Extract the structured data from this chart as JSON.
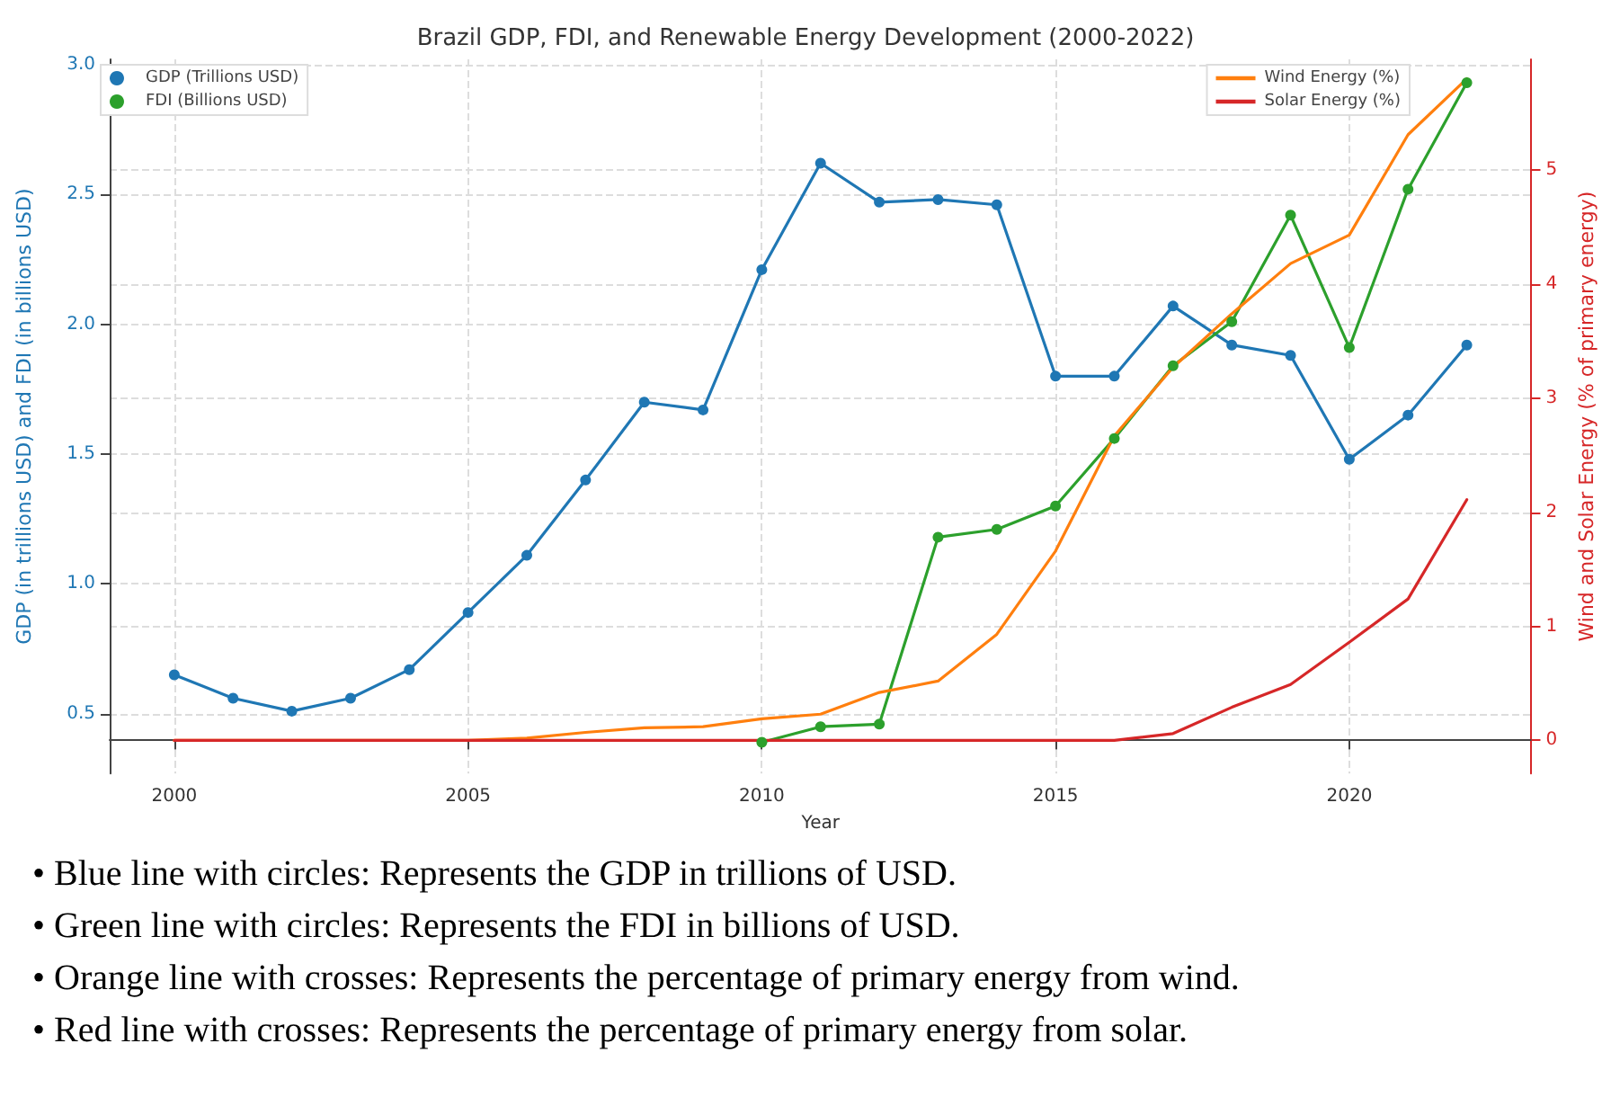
{
  "chart_data": {
    "type": "line",
    "title": "Brazil GDP, FDI, and Renewable Energy Development (2000-2022)",
    "xlabel": "Year",
    "ylabel": "GDP (in trillions USD) and FDI (in billions USD)",
    "y2label": "Wind and Solar Energy (% of primary energy)",
    "x": [
      2000,
      2001,
      2002,
      2003,
      2004,
      2005,
      2006,
      2007,
      2008,
      2009,
      2010,
      2011,
      2012,
      2013,
      2014,
      2015,
      2016,
      2017,
      2018,
      2019,
      2020,
      2021,
      2022
    ],
    "series": [
      {
        "name": "GDP (Trillions USD)",
        "color": "#1f77b4",
        "marker": "circle",
        "axis": "y",
        "values": [
          0.65,
          0.56,
          0.51,
          0.56,
          0.67,
          0.89,
          1.11,
          1.4,
          1.7,
          1.67,
          2.21,
          2.62,
          2.47,
          2.48,
          2.46,
          1.8,
          1.8,
          2.07,
          1.92,
          1.88,
          1.48,
          1.65,
          1.92
        ]
      },
      {
        "name": "FDI (Billions USD)",
        "color": "#2ca02c",
        "marker": "circle",
        "axis": "y",
        "values": [
          null,
          null,
          null,
          null,
          null,
          null,
          null,
          null,
          null,
          null,
          0.39,
          0.45,
          0.46,
          1.18,
          1.21,
          1.3,
          1.56,
          1.84,
          2.01,
          2.42,
          1.91,
          2.52,
          2.93
        ]
      },
      {
        "name": "Wind Energy (%)",
        "color": "#ff7f0e",
        "marker": "none",
        "axis": "y2",
        "values": [
          0,
          0,
          0,
          0,
          0,
          0,
          0.02,
          0.07,
          0.11,
          0.12,
          0.19,
          0.23,
          0.42,
          0.52,
          0.93,
          1.66,
          2.67,
          3.27,
          3.74,
          4.18,
          4.43,
          5.31,
          5.8
        ]
      },
      {
        "name": "Solar Energy (%)",
        "color": "#d62728",
        "marker": "none",
        "axis": "y2",
        "values": [
          0,
          0,
          0,
          0,
          0,
          0,
          0,
          0,
          0,
          0,
          0,
          0,
          0,
          0,
          0,
          0,
          0,
          0.06,
          0.29,
          0.49,
          0.86,
          1.24,
          2.11
        ]
      }
    ],
    "xlim": [
      1998.9,
      2023.1
    ],
    "xticks": [
      2000,
      2005,
      2010,
      2015,
      2020
    ],
    "ylim": [
      0.27,
      3.02
    ],
    "yticks": [
      {
        "value": 0.5,
        "label": "0.5"
      },
      {
        "value": 1,
        "label": "1.0"
      },
      {
        "value": 1.5,
        "label": "1.5"
      },
      {
        "value": 2,
        "label": "2.0"
      },
      {
        "value": 2.5,
        "label": "2.5"
      },
      {
        "value": 3,
        "label": "3.0"
      }
    ],
    "y2lim": [
      -0.29,
      5.97
    ],
    "y2ticks": [
      0,
      1,
      2,
      3,
      4,
      5
    ],
    "grid": true,
    "legend": "top",
    "line_style": "solid",
    "annotations": [
      "• Blue line with circles: Represents the GDP in trillions of USD.",
      "• Green line with circles: Represents the FDI in billions of USD.",
      "• Orange line with crosses: Represents the percentage of primary energy from wind.",
      "• Red line with crosses: Represents the percentage of primary energy from solar."
    ]
  }
}
